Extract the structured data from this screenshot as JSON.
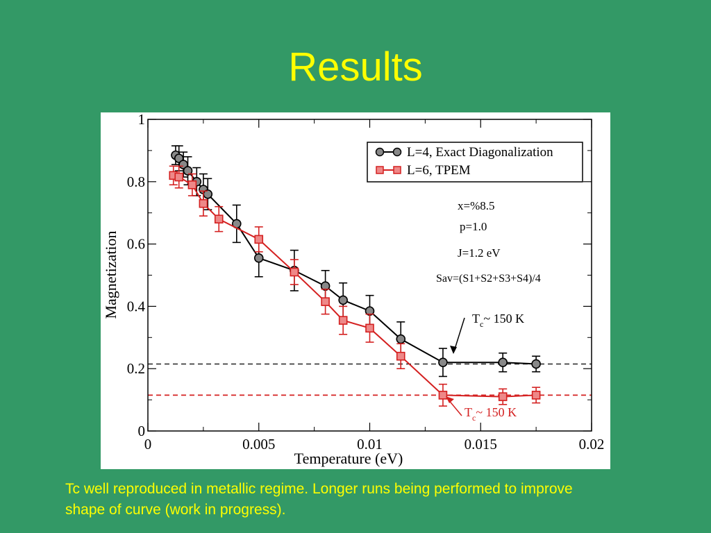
{
  "slide": {
    "title": "Results",
    "caption_line1": "Tc well reproduced in metallic regime. Longer runs being performed to improve",
    "caption_line2": "shape of curve (work in progress)."
  },
  "colors": {
    "background": "#339966",
    "title": "#ffff00",
    "series_exact": "#000000",
    "series_tpem": "#d42020"
  },
  "chart_data": {
    "type": "line",
    "xlabel": "Temperature (eV)",
    "ylabel": "Magnetization",
    "xlim": [
      0,
      0.02
    ],
    "ylim": [
      0,
      1
    ],
    "x_ticks": [
      "0",
      "0.005",
      "0.01",
      "0.015",
      "0.02"
    ],
    "y_ticks": [
      "0",
      "0.2",
      "0.4",
      "0.6",
      "0.8",
      "1"
    ],
    "legend_position": "top-right",
    "series": [
      {
        "name": "L=4, Exact Diagonalization",
        "marker": "circle",
        "color": "#000000",
        "x": [
          0.00125,
          0.0014,
          0.0016,
          0.0018,
          0.0022,
          0.0025,
          0.0027,
          0.004,
          0.005,
          0.0066,
          0.008,
          0.0088,
          0.01,
          0.0114,
          0.0133,
          0.016,
          0.0175
        ],
        "y": [
          0.885,
          0.875,
          0.855,
          0.835,
          0.8,
          0.775,
          0.76,
          0.665,
          0.555,
          0.515,
          0.465,
          0.42,
          0.385,
          0.295,
          0.22,
          0.22,
          0.215
        ],
        "err": [
          0.03,
          0.04,
          0.04,
          0.045,
          0.045,
          0.05,
          0.05,
          0.06,
          0.06,
          0.065,
          0.05,
          0.055,
          0.05,
          0.055,
          0.045,
          0.03,
          0.025
        ]
      },
      {
        "name": "L=6, TPEM",
        "marker": "square",
        "color": "#d42020",
        "x": [
          0.00115,
          0.0014,
          0.002,
          0.0025,
          0.0032,
          0.005,
          0.0066,
          0.008,
          0.0088,
          0.01,
          0.0114,
          0.0133,
          0.016,
          0.0175
        ],
        "y": [
          0.82,
          0.815,
          0.79,
          0.73,
          0.68,
          0.615,
          0.51,
          0.415,
          0.355,
          0.33,
          0.24,
          0.115,
          0.11,
          0.115
        ],
        "err": [
          0.03,
          0.035,
          0.035,
          0.04,
          0.04,
          0.04,
          0.04,
          0.04,
          0.045,
          0.045,
          0.04,
          0.035,
          0.025,
          0.025
        ]
      }
    ],
    "reference_lines": [
      {
        "y": 0.215,
        "color": "#000000",
        "style": "dashed"
      },
      {
        "y": 0.115,
        "color": "#d42020",
        "style": "dashed"
      }
    ],
    "annotations": {
      "params": [
        "x=%8.5",
        "p=1.0",
        "J=1.2 eV",
        "Sav=(S1+S2+S3+S4)/4"
      ],
      "tc_black": {
        "main": "T",
        "sub": "c",
        "rest": "~ 150 K"
      },
      "tc_red": {
        "main": "T",
        "sub": "c",
        "rest": "~ 150 K"
      }
    }
  }
}
